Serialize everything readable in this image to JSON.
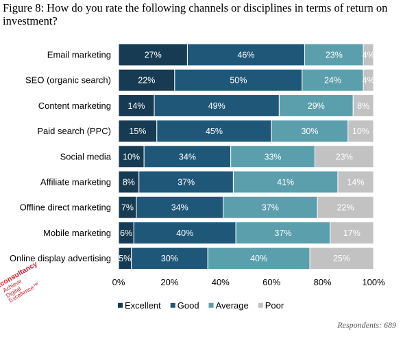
{
  "figure": {
    "title": "Figure 8: How do you rate the following channels or disciplines in terms of return on investment?",
    "respondents": "Respondents: 689"
  },
  "logo": {
    "brand": "Econsultancy",
    "tagline": [
      "Achieve",
      "Digital",
      "Excellence™"
    ]
  },
  "colors": {
    "excellent": "#173b52",
    "good": "#1f5779",
    "average": "#5b9fac",
    "poor": "#c2c2c2",
    "bar_text": "#ffffff",
    "label_text": "#000000"
  },
  "chart_data": {
    "type": "bar",
    "orientation": "horizontal",
    "stacked": true,
    "title": "",
    "xlabel": "",
    "ylabel": "",
    "xlim": [
      0,
      100
    ],
    "x_ticks": [
      "0%",
      "20%",
      "40%",
      "60%",
      "80%",
      "100%"
    ],
    "grid": false,
    "legend_position": "bottom",
    "categories": [
      "Email marketing",
      "SEO (organic search)",
      "Content marketing",
      "Paid search (PPC)",
      "Social media",
      "Affiliate marketing",
      "Offline direct marketing",
      "Mobile marketing",
      "Online display advertising"
    ],
    "series": [
      {
        "name": "Excellent",
        "values": [
          27,
          22,
          14,
          15,
          10,
          8,
          7,
          6,
          5
        ]
      },
      {
        "name": "Good",
        "values": [
          46,
          50,
          49,
          45,
          34,
          37,
          34,
          40,
          30
        ]
      },
      {
        "name": "Average",
        "values": [
          23,
          24,
          29,
          30,
          33,
          41,
          37,
          37,
          40
        ]
      },
      {
        "name": "Poor",
        "values": [
          4,
          4,
          8,
          10,
          23,
          14,
          22,
          17,
          25
        ]
      }
    ],
    "value_format": "{v}%"
  }
}
